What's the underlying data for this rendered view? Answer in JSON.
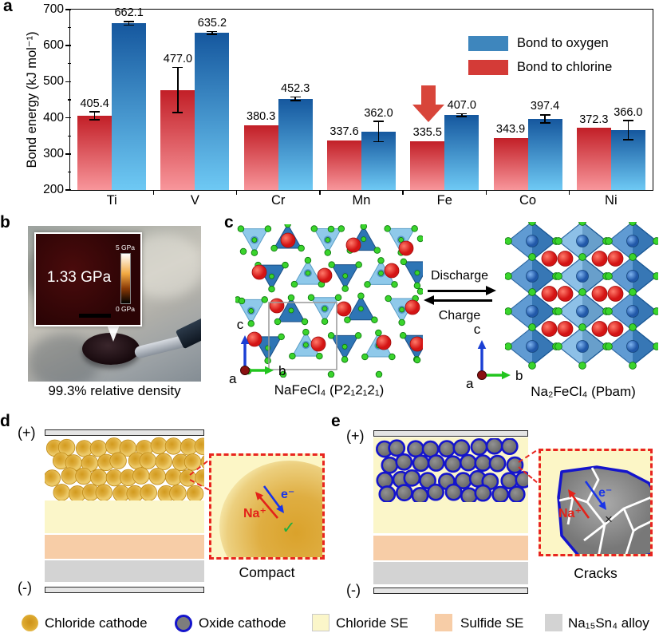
{
  "panels": {
    "a": "a",
    "b": "b",
    "c": "c",
    "d": "d",
    "e": "e"
  },
  "chart_data": {
    "type": "bar",
    "categories": [
      "Ti",
      "V",
      "Cr",
      "Mn",
      "Fe",
      "Co",
      "Ni"
    ],
    "series": [
      {
        "name": "Bond to chlorine",
        "values": [
          405.4,
          477.0,
          380.3,
          337.6,
          335.5,
          343.9,
          372.3
        ],
        "errors": [
          11,
          63,
          0,
          0,
          0,
          0,
          0
        ]
      },
      {
        "name": "Bond to oxygen",
        "values": [
          662.1,
          635.2,
          452.3,
          362.0,
          407.0,
          397.4,
          366.0
        ],
        "errors": [
          5,
          4,
          5,
          28,
          4,
          11,
          26
        ]
      }
    ],
    "ylabel": "Bond energy (kJ mol⁻¹)",
    "ylim": [
      200,
      700
    ],
    "yticks": [
      200,
      300,
      400,
      500,
      600,
      700
    ],
    "grid": false,
    "legend_position": "top-right",
    "legend": [
      {
        "label": "Bond to oxygen",
        "swatch": "blue"
      },
      {
        "label": "Bond to chlorine",
        "swatch": "red"
      }
    ],
    "annotation": {
      "type": "down-arrow",
      "category": "Fe",
      "series": "Bond to chlorine"
    }
  },
  "panel_b": {
    "inset_pressure": "1.33 GPa",
    "colorbar_max": "5 GPa",
    "colorbar_min": "0 GPa",
    "caption": "99.3% relative density"
  },
  "panel_c": {
    "left_formula": "NaFeCl₄ (P2₁2₁2₁)",
    "right_formula": "Na₂FeCl₄ (Pbam)",
    "discharge_label": "Discharge",
    "charge_label": "Charge",
    "axis_a": "a",
    "axis_b": "b",
    "axis_c": "c"
  },
  "panel_d": {
    "positive": "(+)",
    "negative": "(-)",
    "na_label": "Na⁺",
    "electron_label": "e⁻",
    "check_mark": "✓",
    "caption": "Compact"
  },
  "panel_e": {
    "positive": "(+)",
    "negative": "(-)",
    "na_label": "Na⁺",
    "electron_label": "e⁻",
    "cross_mark": "×",
    "caption": "Cracks"
  },
  "bottom_legend": {
    "items": [
      {
        "label": "Chloride cathode",
        "swatch": "gold-circle"
      },
      {
        "label": "Oxide cathode",
        "swatch": "gray-circle-blue-ring"
      },
      {
        "label": "Chloride SE",
        "swatch": "pale-yellow-square"
      },
      {
        "label": "Sulfide SE",
        "swatch": "peach-square"
      },
      {
        "label": "Na₁₅Sn₄ alloy",
        "swatch": "gray-square"
      }
    ]
  },
  "colors": {
    "bar_red_top": "#c21f27",
    "bar_red_bottom": "#f8969b",
    "bar_blue_top": "#15579e",
    "bar_blue_bottom": "#6ec9f4",
    "legend_red": "#d43b37",
    "legend_blue": "#3e86bd",
    "highlight_arrow_red": "#d8453a",
    "chloride_cathode_gold": "#d99e24",
    "oxide_gray": "#7d7d7d",
    "oxide_ring_blue": "#1414cc",
    "chloride_se": "#fbf6c9",
    "sulfide_se": "#f7cda7",
    "alloy_gray": "#d3d3d3",
    "electrode_gray": "#e4e4e4",
    "callout_red": "#e8251f",
    "na_red": "#e32219",
    "electron_blue": "#1a35e8",
    "check_green": "#1faf3f",
    "tetra_light": "#8fc9ea",
    "tetra_dark": "#2e75b5",
    "octa_dark": "#3e85ca",
    "octa_light": "#74b2e2",
    "atom_red": "#d41414",
    "atom_green": "#3ad42c"
  }
}
